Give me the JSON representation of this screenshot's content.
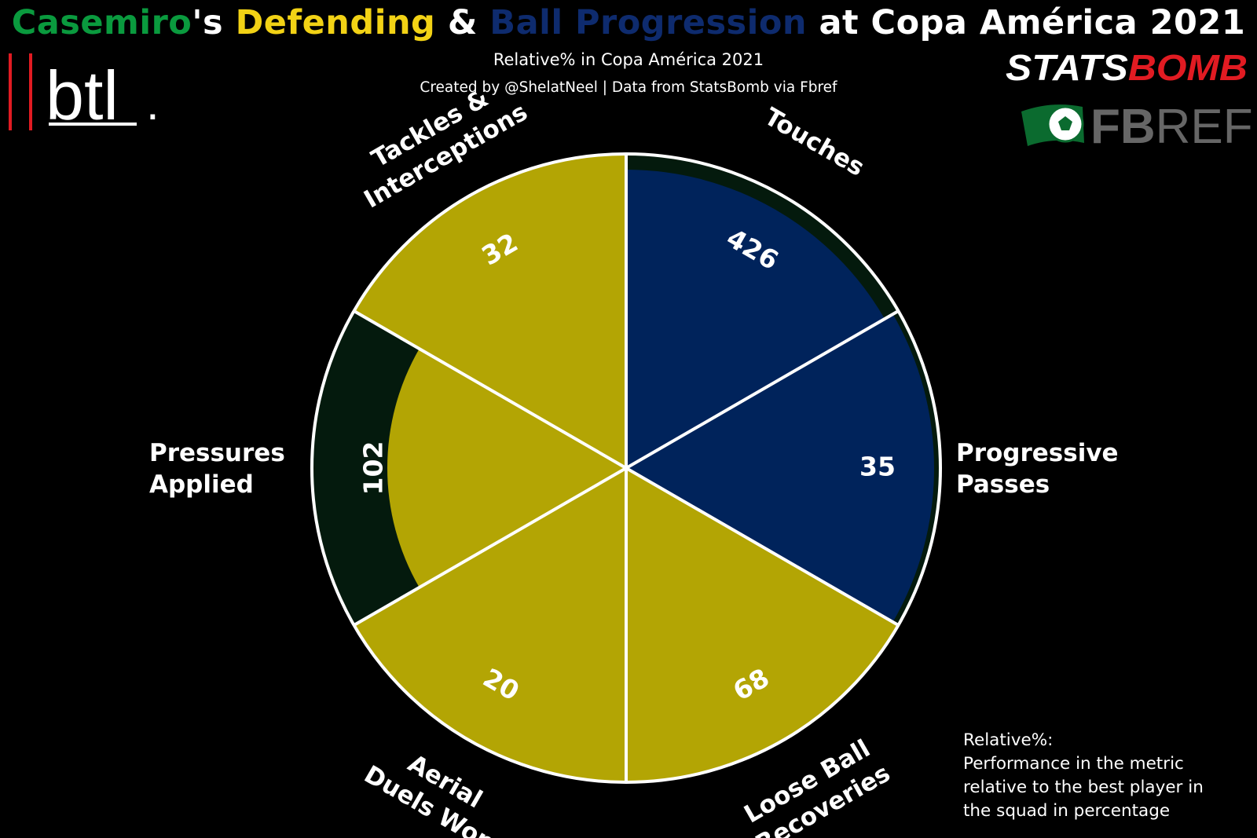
{
  "header": {
    "title_parts": [
      {
        "text": "Casemiro",
        "color": "#0a9a3e"
      },
      {
        "text": "'s ",
        "color": "#ffffff"
      },
      {
        "text": "Defending",
        "color": "#f2d215"
      },
      {
        "text": " & ",
        "color": "#ffffff"
      },
      {
        "text": "Ball Progression",
        "color": "#0e2b6e"
      },
      {
        "text": " at Copa América 2021",
        "color": "#ffffff"
      }
    ],
    "subtitle": "Relative% in Copa América 2021",
    "credit": "Created by @ShelatNeel | Data from StatsBomb via Fbref"
  },
  "logos": {
    "btl": {
      "text": "btl",
      "dot": ".",
      "bar_color": "#e11b22"
    },
    "statsbomb": {
      "text_a": "STATS",
      "text_b": "BOMB",
      "color_a": "#ffffff",
      "color_b": "#e11b22"
    },
    "fbref": {
      "text_a": "FB",
      "text_b": "REF",
      "color": "#666666",
      "flag_color": "#0b6b2f"
    }
  },
  "chart_data": {
    "type": "pizza",
    "max_value": 100,
    "background_color": "#041a0d",
    "colors": {
      "defending": "#b3a504",
      "progression": "#00235b"
    },
    "slices": [
      {
        "metric": "Touches",
        "label_lines": [
          "Touches"
        ],
        "relative_pct": 95,
        "value_label": "426",
        "group": "progression"
      },
      {
        "metric": "Progressive Passes",
        "label_lines": [
          "Progressive",
          "Passes"
        ],
        "relative_pct": 98,
        "value_label": "35",
        "group": "progression"
      },
      {
        "metric": "Loose Ball Recoveries",
        "label_lines": [
          "Loose Ball",
          "Recoveries"
        ],
        "relative_pct": 100,
        "value_label": "68",
        "group": "defending"
      },
      {
        "metric": "Aerial Duels Won",
        "label_lines": [
          "Aerial",
          "Duels Won"
        ],
        "relative_pct": 100,
        "value_label": "20",
        "group": "defending"
      },
      {
        "metric": "Pressures Applied",
        "label_lines": [
          "Pressures",
          "Applied"
        ],
        "relative_pct": 76,
        "value_label": "102",
        "group": "defending"
      },
      {
        "metric": "Tackles & Interceptions",
        "label_lines": [
          "Tackles &",
          "Interceptions"
        ],
        "relative_pct": 100,
        "value_label": "32",
        "group": "defending"
      }
    ]
  },
  "note": {
    "title": "Relative%:",
    "text": "Performance in the metric\nrelative to the best player in\nthe squad in percentage"
  }
}
